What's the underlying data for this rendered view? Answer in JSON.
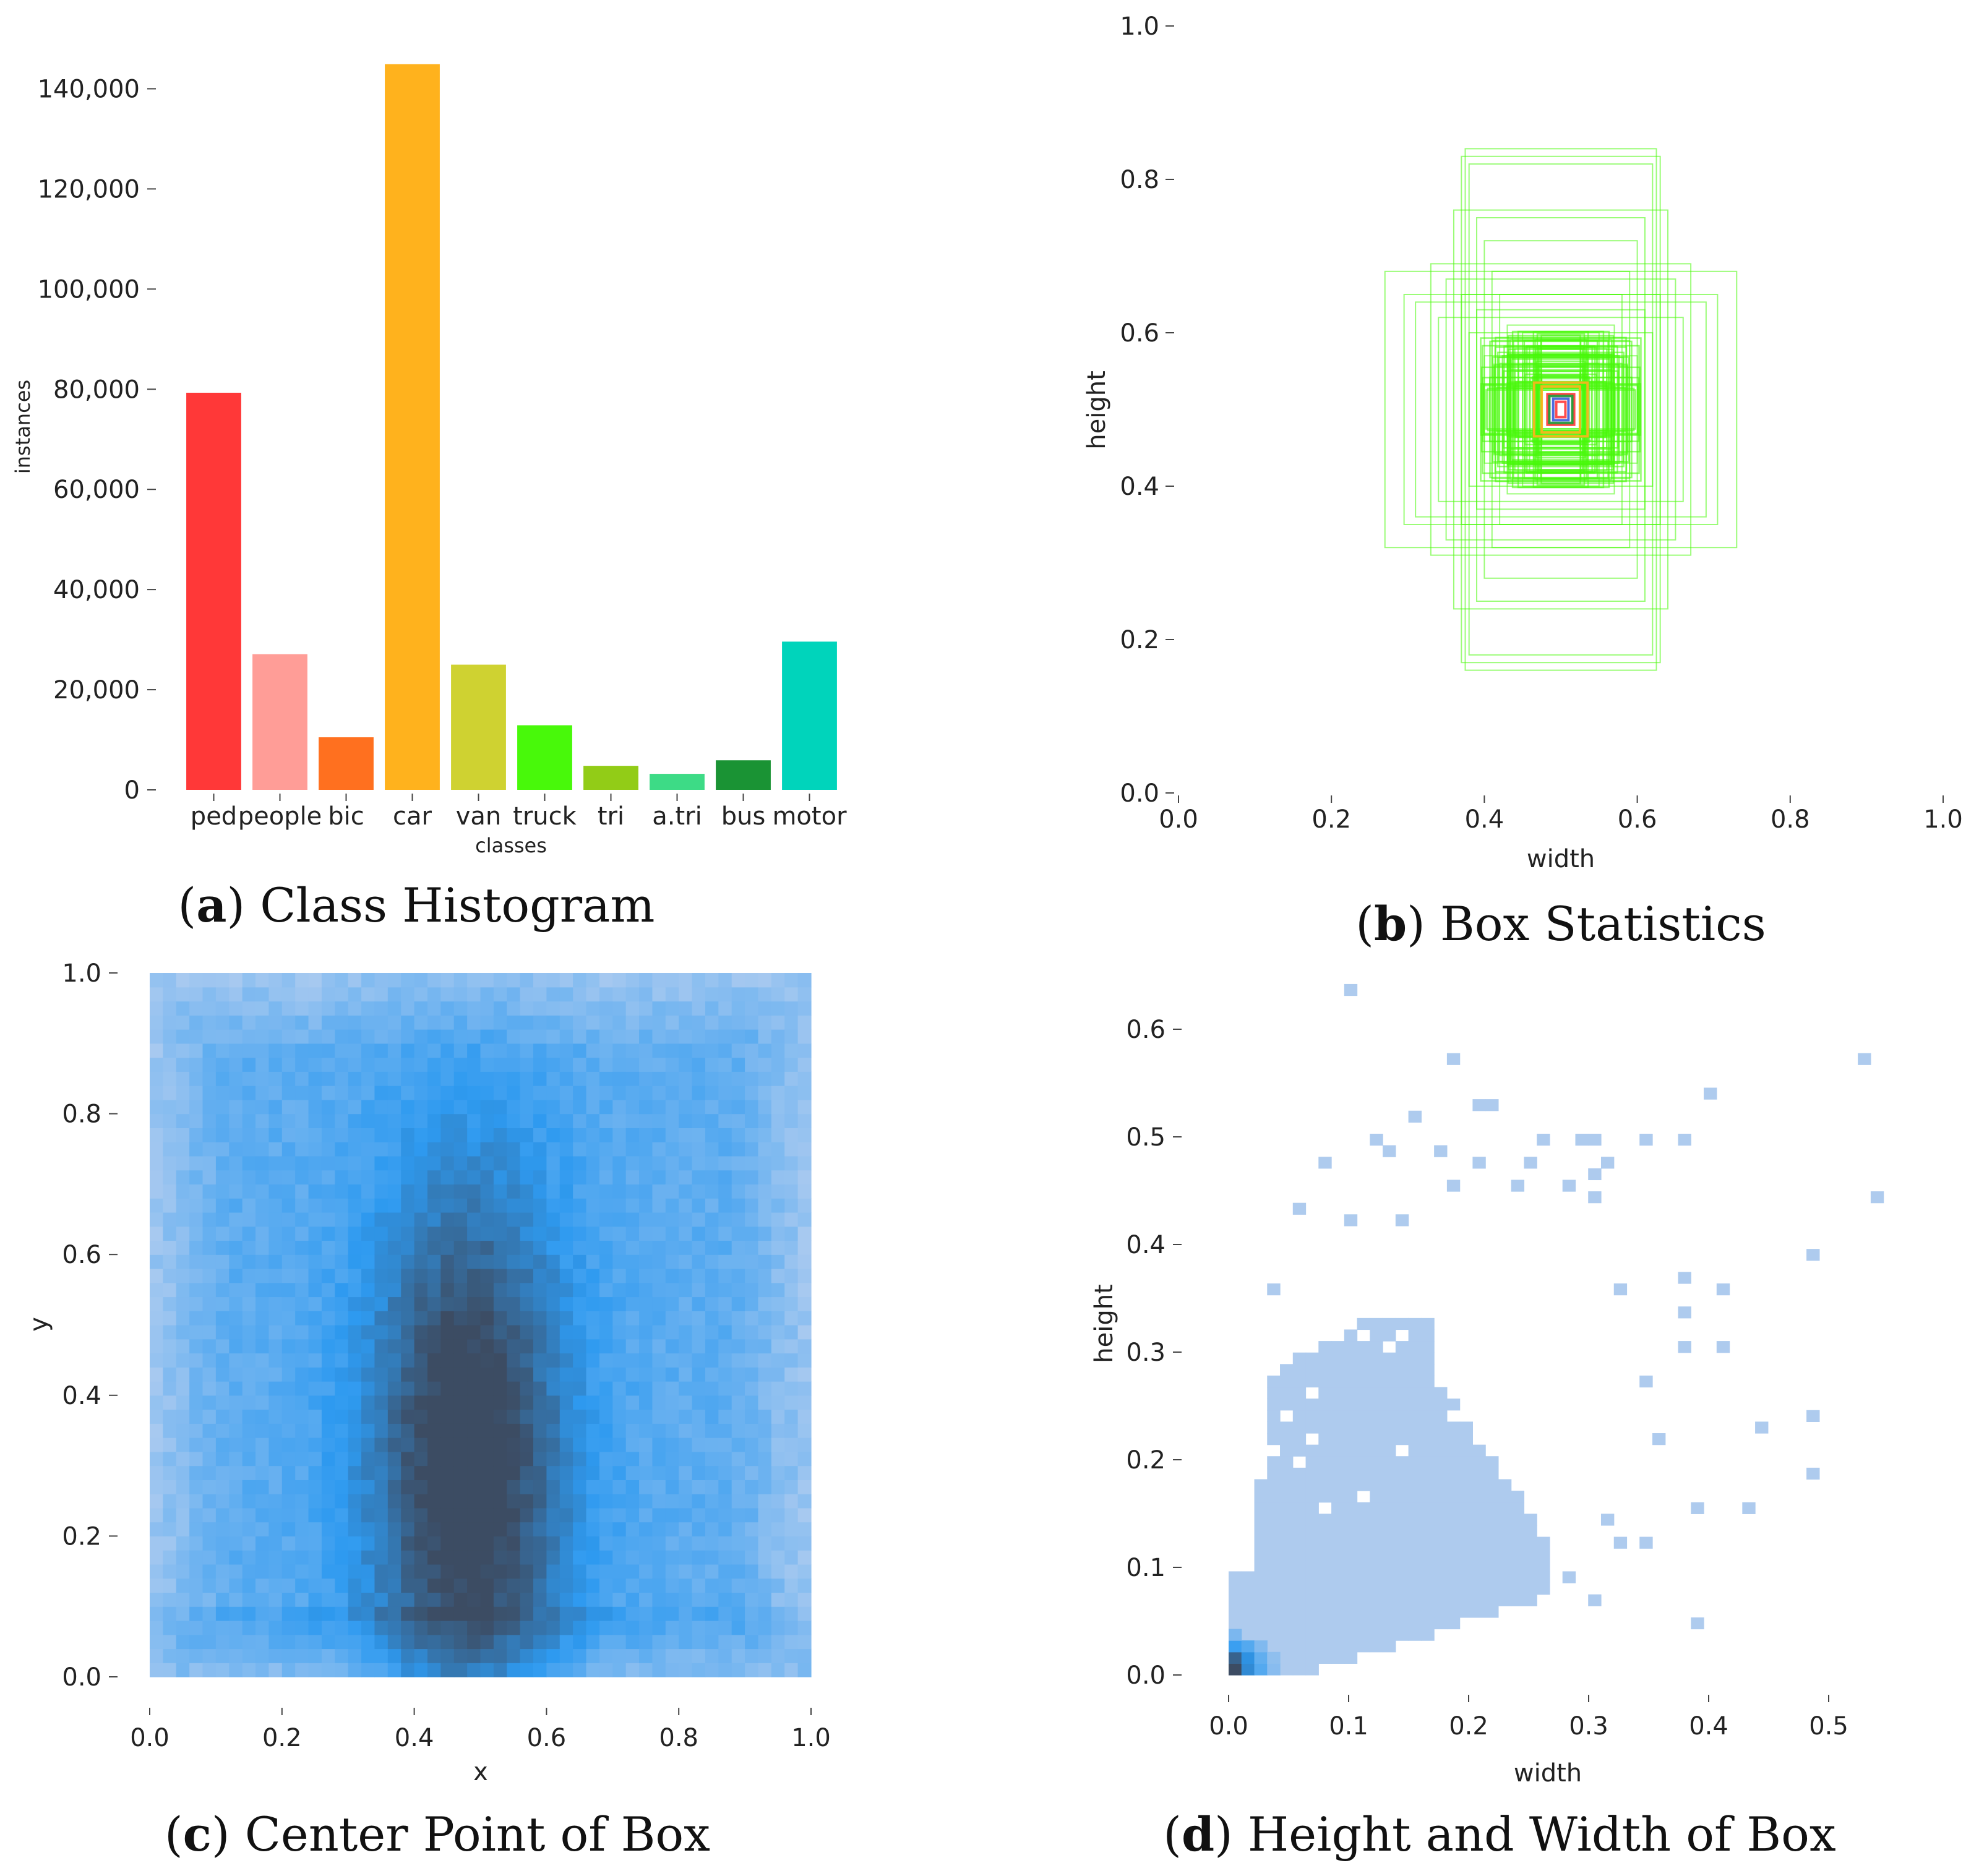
{
  "chart_data": [
    {
      "id": "a",
      "type": "bar",
      "caption_letter": "a",
      "caption_title": "Class Histogram",
      "xlabel": "classes",
      "ylabel": "instances",
      "ylim": [
        0,
        145000
      ],
      "yticks": [
        0,
        20000,
        40000,
        60000,
        80000,
        100000,
        120000,
        140000
      ],
      "ytick_labels": [
        "0",
        "20,000",
        "40,000",
        "60,000",
        "80,000",
        "100,000",
        "120,000",
        "140,000"
      ],
      "categories": [
        "ped",
        "people",
        "bic",
        "car",
        "van",
        "truck",
        "tri",
        "a.tri",
        "bus",
        "motor"
      ],
      "values": [
        79300,
        27100,
        10500,
        144900,
        25000,
        12900,
        4800,
        3200,
        5900,
        29600
      ],
      "colors": [
        "#ff3838",
        "#ff9d97",
        "#ff701f",
        "#ffb21d",
        "#cfd231",
        "#48f90a",
        "#92cc17",
        "#3ddb86",
        "#1a9334",
        "#00d4bb"
      ]
    },
    {
      "id": "b",
      "type": "rectangles",
      "caption_letter": "b",
      "caption_title": "Box Statistics",
      "xlabel": "width",
      "ylabel": "height",
      "xlim": [
        0,
        1
      ],
      "ylim": [
        0,
        1
      ],
      "xticks": [
        0,
        0.2,
        0.4,
        0.6,
        0.8,
        1.0
      ],
      "xtick_labels": [
        "0.0",
        "0.2",
        "0.4",
        "0.6",
        "0.8",
        "1.0"
      ],
      "yticks": [
        0,
        0.2,
        0.4,
        0.6,
        0.8,
        1.0
      ],
      "ytick_labels": [
        "0.0",
        "0.2",
        "0.4",
        "0.6",
        "0.8",
        "1.0"
      ],
      "center": [
        0.5,
        0.5
      ],
      "boxes_wh": [
        [
          0.25,
          0.68
        ],
        [
          0.26,
          0.66
        ],
        [
          0.24,
          0.64
        ],
        [
          0.46,
          0.36
        ],
        [
          0.41,
          0.3
        ],
        [
          0.34,
          0.38
        ],
        [
          0.28,
          0.52
        ],
        [
          0.38,
          0.28
        ],
        [
          0.22,
          0.5
        ],
        [
          0.3,
          0.34
        ],
        [
          0.2,
          0.44
        ],
        [
          0.32,
          0.24
        ],
        [
          0.26,
          0.3
        ],
        [
          0.18,
          0.36
        ],
        [
          0.22,
          0.26
        ],
        [
          0.16,
          0.3
        ],
        [
          0.24,
          0.2
        ],
        [
          0.14,
          0.22
        ],
        [
          0.18,
          0.18
        ],
        [
          0.12,
          0.16
        ],
        [
          0.2,
          0.14
        ],
        [
          0.1,
          0.2
        ],
        [
          0.16,
          0.12
        ],
        [
          0.14,
          0.14
        ],
        [
          0.12,
          0.1
        ],
        [
          0.1,
          0.12
        ],
        [
          0.08,
          0.08
        ],
        [
          0.06,
          0.07
        ],
        [
          0.05,
          0.05
        ],
        [
          0.03,
          0.04
        ]
      ],
      "box_color": "#48f90a",
      "inner_colors": [
        "#ffb21d",
        "#ff3838",
        "#1a9334",
        "#3b5bdb"
      ]
    },
    {
      "id": "c",
      "type": "heatmap",
      "caption_letter": "c",
      "caption_title": "Center Point of Box",
      "xlabel": "x",
      "ylabel": "y",
      "xlim": [
        0,
        1
      ],
      "ylim": [
        0,
        1
      ],
      "xticks": [
        0,
        0.2,
        0.4,
        0.6,
        0.8,
        1.0
      ],
      "xtick_labels": [
        "0.0",
        "0.2",
        "0.4",
        "0.6",
        "0.8",
        "1.0"
      ],
      "yticks": [
        0,
        0.2,
        0.4,
        0.6,
        0.8,
        1.0
      ],
      "ytick_labels": [
        "0.0",
        "0.2",
        "0.4",
        "0.6",
        "0.8",
        "1.0"
      ],
      "bins": 50,
      "density_peak": [
        0.48,
        0.3
      ],
      "colors": [
        "#a7c9f0",
        "#2e9af0",
        "#3c4c63"
      ]
    },
    {
      "id": "d",
      "type": "heatmap",
      "caption_letter": "d",
      "caption_title": "Height and Width of Box",
      "xlabel": "width",
      "ylabel": "height",
      "xlim": [
        -0.01,
        0.55
      ],
      "ylim": [
        -0.01,
        0.66
      ],
      "xticks": [
        0,
        0.1,
        0.2,
        0.3,
        0.4,
        0.5
      ],
      "xtick_labels": [
        "0.0",
        "0.1",
        "0.2",
        "0.3",
        "0.4",
        "0.5"
      ],
      "yticks": [
        0,
        0.1,
        0.2,
        0.3,
        0.4,
        0.5,
        0.6
      ],
      "ytick_labels": [
        "0.0",
        "0.1",
        "0.2",
        "0.3",
        "0.4",
        "0.5",
        "0.6"
      ],
      "bin_size": 0.0107,
      "sparse_points": [
        [
          0.1,
          0.64
        ],
        [
          0.19,
          0.57
        ],
        [
          0.53,
          0.57
        ],
        [
          0.4,
          0.54
        ],
        [
          0.21,
          0.53
        ],
        [
          0.22,
          0.53
        ],
        [
          0.15,
          0.52
        ],
        [
          0.12,
          0.5
        ],
        [
          0.35,
          0.5
        ],
        [
          0.38,
          0.5
        ],
        [
          0.29,
          0.5
        ],
        [
          0.3,
          0.5
        ],
        [
          0.26,
          0.5
        ],
        [
          0.08,
          0.48
        ],
        [
          0.13,
          0.49
        ],
        [
          0.18,
          0.49
        ],
        [
          0.21,
          0.48
        ],
        [
          0.25,
          0.48
        ],
        [
          0.32,
          0.48
        ],
        [
          0.3,
          0.47
        ],
        [
          0.19,
          0.45
        ],
        [
          0.24,
          0.45
        ],
        [
          0.28,
          0.45
        ],
        [
          0.54,
          0.44
        ],
        [
          0.31,
          0.44
        ],
        [
          0.06,
          0.43
        ],
        [
          0.1,
          0.42
        ],
        [
          0.14,
          0.42
        ],
        [
          0.49,
          0.39
        ],
        [
          0.38,
          0.37
        ],
        [
          0.33,
          0.36
        ],
        [
          0.41,
          0.36
        ],
        [
          0.38,
          0.34
        ],
        [
          0.04,
          0.36
        ],
        [
          0.38,
          0.3
        ],
        [
          0.41,
          0.3
        ],
        [
          0.35,
          0.27
        ],
        [
          0.49,
          0.24
        ],
        [
          0.44,
          0.23
        ],
        [
          0.36,
          0.22
        ],
        [
          0.49,
          0.19
        ],
        [
          0.43,
          0.16
        ],
        [
          0.33,
          0.12
        ],
        [
          0.35,
          0.12
        ],
        [
          0.39,
          0.15
        ],
        [
          0.32,
          0.14
        ],
        [
          0.39,
          0.05
        ],
        [
          0.31,
          0.07
        ],
        [
          0.28,
          0.09
        ],
        [
          0.26,
          0.09
        ]
      ],
      "colors": [
        "#aecbee",
        "#2e9af0",
        "#3c4c63"
      ]
    }
  ]
}
